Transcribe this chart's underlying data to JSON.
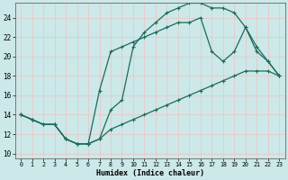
{
  "xlabel": "Humidex (Indice chaleur)",
  "background_color": "#cce8e8",
  "grid_color": "#e8c8c8",
  "line_color": "#1a6b5a",
  "xlim": [
    -0.5,
    23.5
  ],
  "ylim": [
    9.5,
    25.5
  ],
  "xticks": [
    0,
    1,
    2,
    3,
    4,
    5,
    6,
    7,
    8,
    9,
    10,
    11,
    12,
    13,
    14,
    15,
    16,
    17,
    18,
    19,
    20,
    21,
    22,
    23
  ],
  "yticks": [
    10,
    12,
    14,
    16,
    18,
    20,
    22,
    24
  ],
  "line1_x": [
    0,
    1,
    2,
    3,
    4,
    5,
    6,
    7,
    8,
    9,
    10,
    11,
    12,
    13,
    14,
    15,
    16,
    17,
    18,
    19,
    20,
    21,
    22,
    23
  ],
  "line1_y": [
    14.0,
    13.5,
    13.0,
    13.0,
    11.5,
    11.0,
    11.0,
    11.5,
    12.5,
    13.0,
    13.5,
    14.0,
    14.5,
    15.0,
    15.5,
    16.0,
    16.5,
    17.0,
    17.5,
    18.0,
    18.5,
    18.5,
    18.5,
    18.0
  ],
  "line2_x": [
    0,
    1,
    2,
    3,
    4,
    5,
    6,
    7,
    8,
    9,
    10,
    11,
    12,
    13,
    14,
    15,
    16,
    17,
    18,
    19,
    20,
    21,
    22,
    23
  ],
  "line2_y": [
    14.0,
    13.5,
    13.0,
    13.0,
    11.5,
    11.0,
    11.0,
    16.5,
    20.5,
    21.0,
    21.5,
    22.0,
    22.5,
    23.0,
    23.5,
    23.5,
    24.0,
    20.5,
    19.5,
    20.5,
    23.0,
    20.5,
    19.5,
    18.0
  ],
  "line3_x": [
    0,
    1,
    2,
    3,
    4,
    5,
    6,
    7,
    8,
    9,
    10,
    11,
    12,
    13,
    14,
    15,
    16,
    17,
    18,
    19,
    20,
    21,
    22,
    23
  ],
  "line3_y": [
    14.0,
    13.5,
    13.0,
    13.0,
    11.5,
    11.0,
    11.0,
    11.5,
    14.5,
    15.5,
    21.0,
    22.5,
    23.5,
    24.5,
    25.0,
    25.5,
    25.5,
    25.0,
    25.0,
    24.5,
    23.0,
    21.0,
    19.5,
    18.0
  ]
}
